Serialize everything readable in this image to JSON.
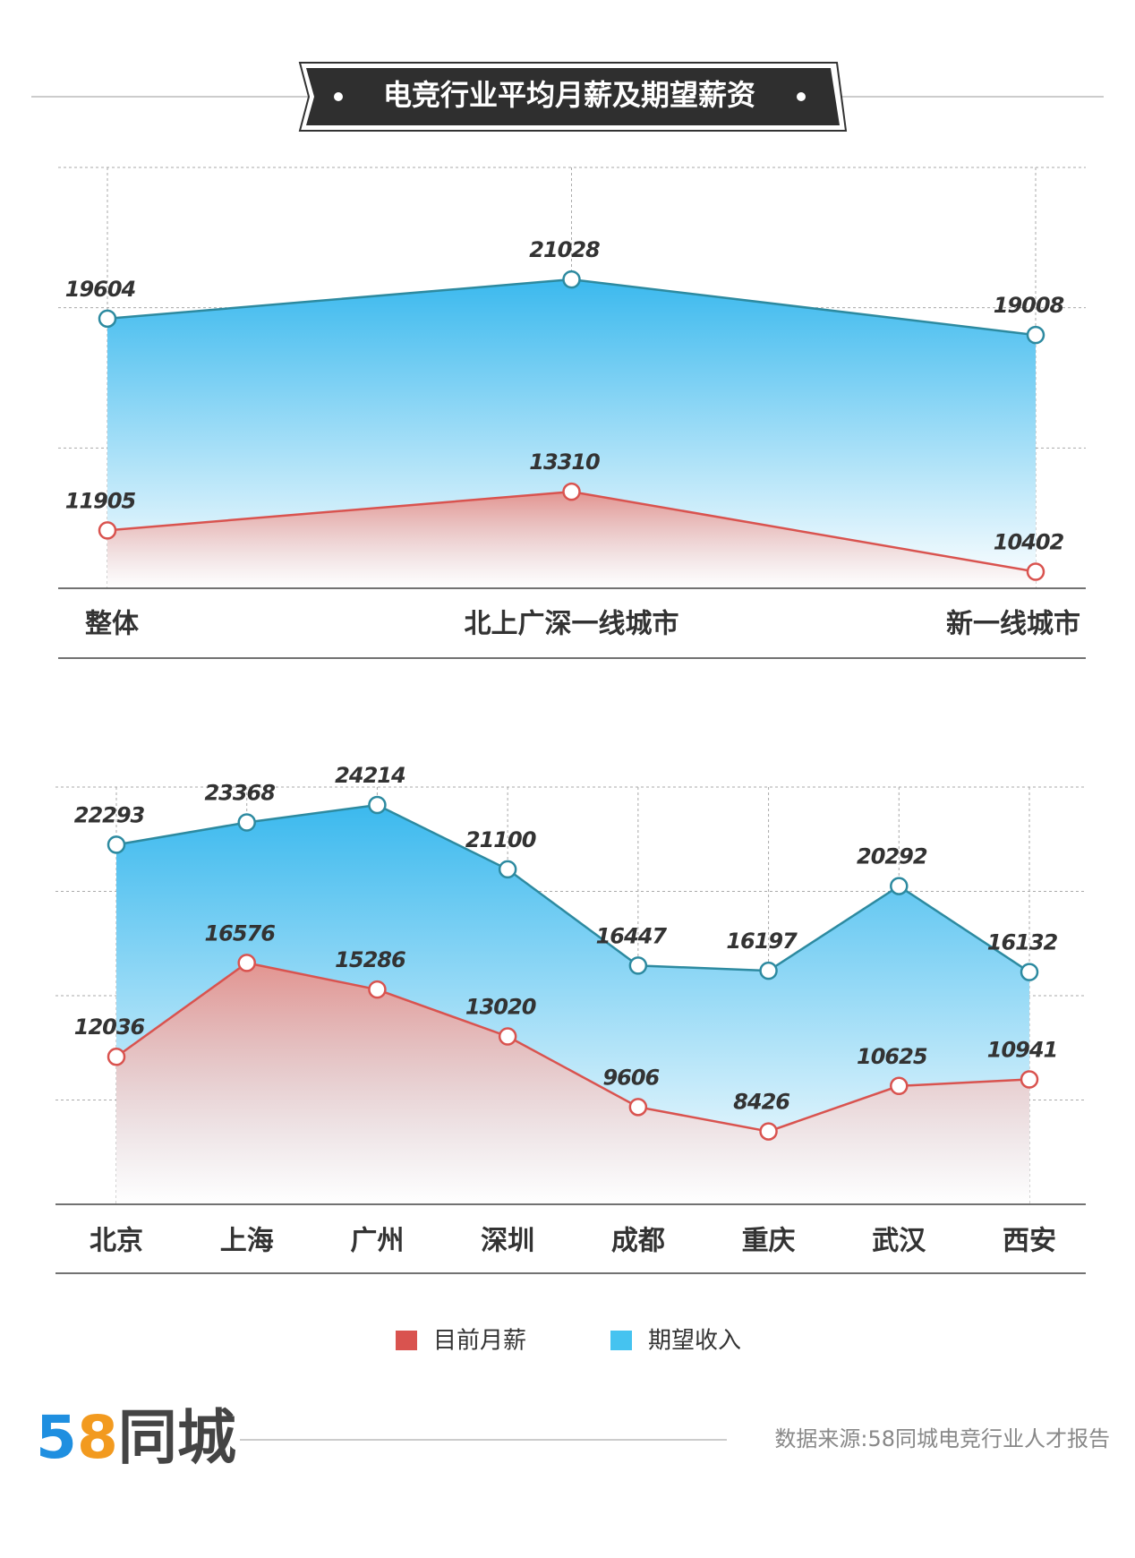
{
  "header": {
    "title": "电竞行业平均月薪及期望薪资"
  },
  "chart_data": [
    {
      "type": "area-line",
      "categories": [
        "整体",
        "北上广深一线城市",
        "新一线城市"
      ],
      "series": [
        {
          "name": "期望收入",
          "color": "#45c3f0",
          "line_color": "#2d8aa0",
          "values": [
            19604,
            21028,
            19008
          ]
        },
        {
          "name": "目前月薪",
          "color": "#d9534f",
          "line_color": "#d9534f",
          "values": [
            11905,
            13310,
            10402
          ]
        }
      ],
      "ylim": [
        9800,
        25100
      ],
      "grid": true
    },
    {
      "type": "area-line",
      "categories": [
        "北京",
        "上海",
        "广州",
        "深圳",
        "成都",
        "重庆",
        "武汉",
        "西安"
      ],
      "series": [
        {
          "name": "期望收入",
          "color": "#45c3f0",
          "line_color": "#2d8aa0",
          "values": [
            22293,
            23368,
            24214,
            21100,
            16447,
            16197,
            20292,
            16132
          ]
        },
        {
          "name": "目前月薪",
          "color": "#d9534f",
          "line_color": "#d9534f",
          "values": [
            12036,
            16576,
            15286,
            13020,
            9606,
            8426,
            10625,
            10941
          ]
        }
      ],
      "ylim": [
        4900,
        25080
      ],
      "grid": true
    }
  ],
  "footer": {
    "logo": [
      "5",
      "8",
      "同城"
    ],
    "source": "数据来源:58同城电竞行业人才报告"
  }
}
